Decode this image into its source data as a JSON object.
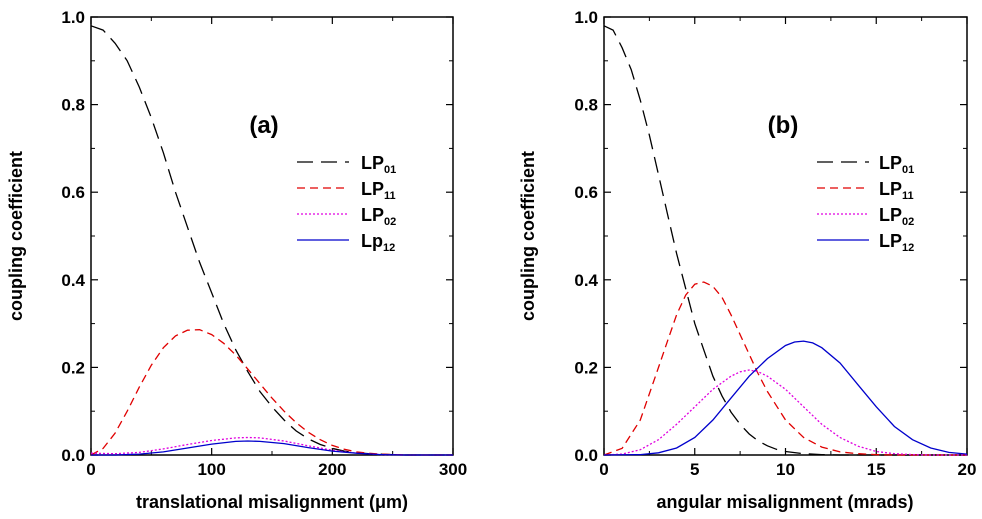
{
  "chart_data": [
    {
      "type": "line",
      "panel_label": "(a)",
      "xlabel": "translational misalignment (μm)",
      "ylabel": "coupling coefficient",
      "xlim": [
        0,
        300
      ],
      "ylim": [
        0,
        1.0
      ],
      "xticks": [
        "0",
        "100",
        "200",
        "300"
      ],
      "yticks": [
        "0.0",
        "0.2",
        "0.4",
        "0.6",
        "0.8",
        "1.0"
      ],
      "legend_position": "right-middle",
      "grid": false,
      "series": [
        {
          "name_base": "LP",
          "name_sub": "01",
          "color": "#000000",
          "dash": "long-dash",
          "x": [
            0,
            10,
            20,
            30,
            40,
            50,
            60,
            70,
            80,
            90,
            100,
            110,
            120,
            130,
            140,
            150,
            160,
            170,
            180,
            190,
            200,
            210,
            220,
            230,
            240,
            250,
            260,
            280,
            300
          ],
          "y": [
            0.98,
            0.97,
            0.94,
            0.9,
            0.84,
            0.77,
            0.69,
            0.6,
            0.52,
            0.44,
            0.37,
            0.3,
            0.24,
            0.19,
            0.145,
            0.11,
            0.08,
            0.055,
            0.037,
            0.024,
            0.015,
            0.009,
            0.005,
            0.003,
            0.002,
            0.001,
            0.0,
            0.0,
            0.0
          ]
        },
        {
          "name_base": "LP",
          "name_sub": "11",
          "color": "#e00000",
          "dash": "short-dash",
          "x": [
            0,
            10,
            20,
            30,
            40,
            50,
            60,
            70,
            80,
            90,
            100,
            110,
            120,
            130,
            140,
            150,
            160,
            170,
            180,
            190,
            200,
            210,
            220,
            230,
            240,
            250,
            260,
            280,
            300
          ],
          "y": [
            0.0,
            0.015,
            0.05,
            0.1,
            0.155,
            0.205,
            0.245,
            0.272,
            0.285,
            0.286,
            0.275,
            0.255,
            0.228,
            0.196,
            0.163,
            0.13,
            0.1,
            0.074,
            0.052,
            0.035,
            0.022,
            0.013,
            0.007,
            0.004,
            0.002,
            0.001,
            0.0,
            0.0,
            0.0
          ]
        },
        {
          "name_base": "LP",
          "name_sub": "02",
          "color": "#e000e0",
          "dash": "dotted",
          "x": [
            0,
            20,
            40,
            60,
            80,
            100,
            120,
            130,
            140,
            160,
            180,
            200,
            220,
            240,
            260,
            300
          ],
          "y": [
            0.004,
            0.003,
            0.006,
            0.014,
            0.024,
            0.033,
            0.039,
            0.04,
            0.039,
            0.032,
            0.021,
            0.011,
            0.004,
            0.001,
            0.0,
            0.0
          ]
        },
        {
          "name_base": "Lp",
          "name_sub": "12",
          "color": "#0000cc",
          "dash": "solid",
          "x": [
            0,
            20,
            40,
            60,
            80,
            100,
            120,
            130,
            140,
            160,
            180,
            200,
            220,
            240,
            260,
            300
          ],
          "y": [
            0.0,
            0.0,
            0.002,
            0.007,
            0.016,
            0.025,
            0.031,
            0.032,
            0.031,
            0.026,
            0.017,
            0.009,
            0.004,
            0.001,
            0.0,
            0.0
          ]
        }
      ]
    },
    {
      "type": "line",
      "panel_label": "(b)",
      "xlabel": "angular misalignment (mrads)",
      "ylabel": "coupling coefficient",
      "xlim": [
        0,
        20
      ],
      "ylim": [
        0,
        1.0
      ],
      "xticks": [
        "0",
        "5",
        "10",
        "15",
        "20"
      ],
      "yticks": [
        "0.0",
        "0.2",
        "0.4",
        "0.6",
        "0.8",
        "1.0"
      ],
      "legend_position": "right-middle",
      "grid": false,
      "series": [
        {
          "name_base": "LP",
          "name_sub": "01",
          "color": "#000000",
          "dash": "long-dash",
          "x": [
            0,
            0.5,
            1,
            1.5,
            2,
            2.5,
            3,
            3.5,
            4,
            4.5,
            5,
            5.5,
            6,
            6.5,
            7,
            7.5,
            8,
            8.5,
            9,
            9.5,
            10,
            11,
            12,
            13,
            14,
            16,
            20
          ],
          "y": [
            0.98,
            0.97,
            0.93,
            0.88,
            0.81,
            0.73,
            0.64,
            0.55,
            0.46,
            0.38,
            0.3,
            0.24,
            0.18,
            0.135,
            0.098,
            0.07,
            0.048,
            0.032,
            0.021,
            0.013,
            0.008,
            0.003,
            0.001,
            0.0,
            0.0,
            0.0,
            0.0
          ]
        },
        {
          "name_base": "LP",
          "name_sub": "11",
          "color": "#e00000",
          "dash": "short-dash",
          "x": [
            0,
            1,
            2,
            3,
            3.5,
            4,
            4.5,
            5,
            5.5,
            6,
            6.5,
            7,
            7.5,
            8,
            8.5,
            9,
            10,
            11,
            12,
            13,
            14,
            15,
            16,
            17,
            20
          ],
          "y": [
            0.0,
            0.015,
            0.08,
            0.2,
            0.26,
            0.32,
            0.365,
            0.39,
            0.395,
            0.385,
            0.36,
            0.32,
            0.275,
            0.23,
            0.185,
            0.145,
            0.08,
            0.04,
            0.018,
            0.007,
            0.003,
            0.001,
            0.0,
            0.0,
            0.0
          ]
        },
        {
          "name_base": "LP",
          "name_sub": "02",
          "color": "#e000e0",
          "dash": "dotted",
          "x": [
            0,
            1,
            2,
            3,
            4,
            5,
            6,
            7,
            7.5,
            8,
            8.5,
            9,
            10,
            11,
            12,
            13,
            14,
            15,
            16,
            17,
            18,
            20
          ],
          "y": [
            0.0,
            0.002,
            0.012,
            0.035,
            0.07,
            0.11,
            0.15,
            0.18,
            0.19,
            0.194,
            0.19,
            0.18,
            0.15,
            0.11,
            0.07,
            0.04,
            0.02,
            0.008,
            0.003,
            0.001,
            0.0,
            0.0
          ]
        },
        {
          "name_base": "LP",
          "name_sub": "12",
          "color": "#0000cc",
          "dash": "solid",
          "x": [
            0,
            2,
            3,
            4,
            5,
            6,
            7,
            8,
            9,
            10,
            10.5,
            11,
            11.5,
            12,
            13,
            14,
            15,
            16,
            17,
            18,
            19,
            20
          ],
          "y": [
            0.0,
            0.001,
            0.005,
            0.016,
            0.04,
            0.08,
            0.13,
            0.18,
            0.22,
            0.25,
            0.258,
            0.26,
            0.256,
            0.245,
            0.21,
            0.16,
            0.11,
            0.065,
            0.035,
            0.016,
            0.006,
            0.002
          ]
        }
      ]
    }
  ]
}
